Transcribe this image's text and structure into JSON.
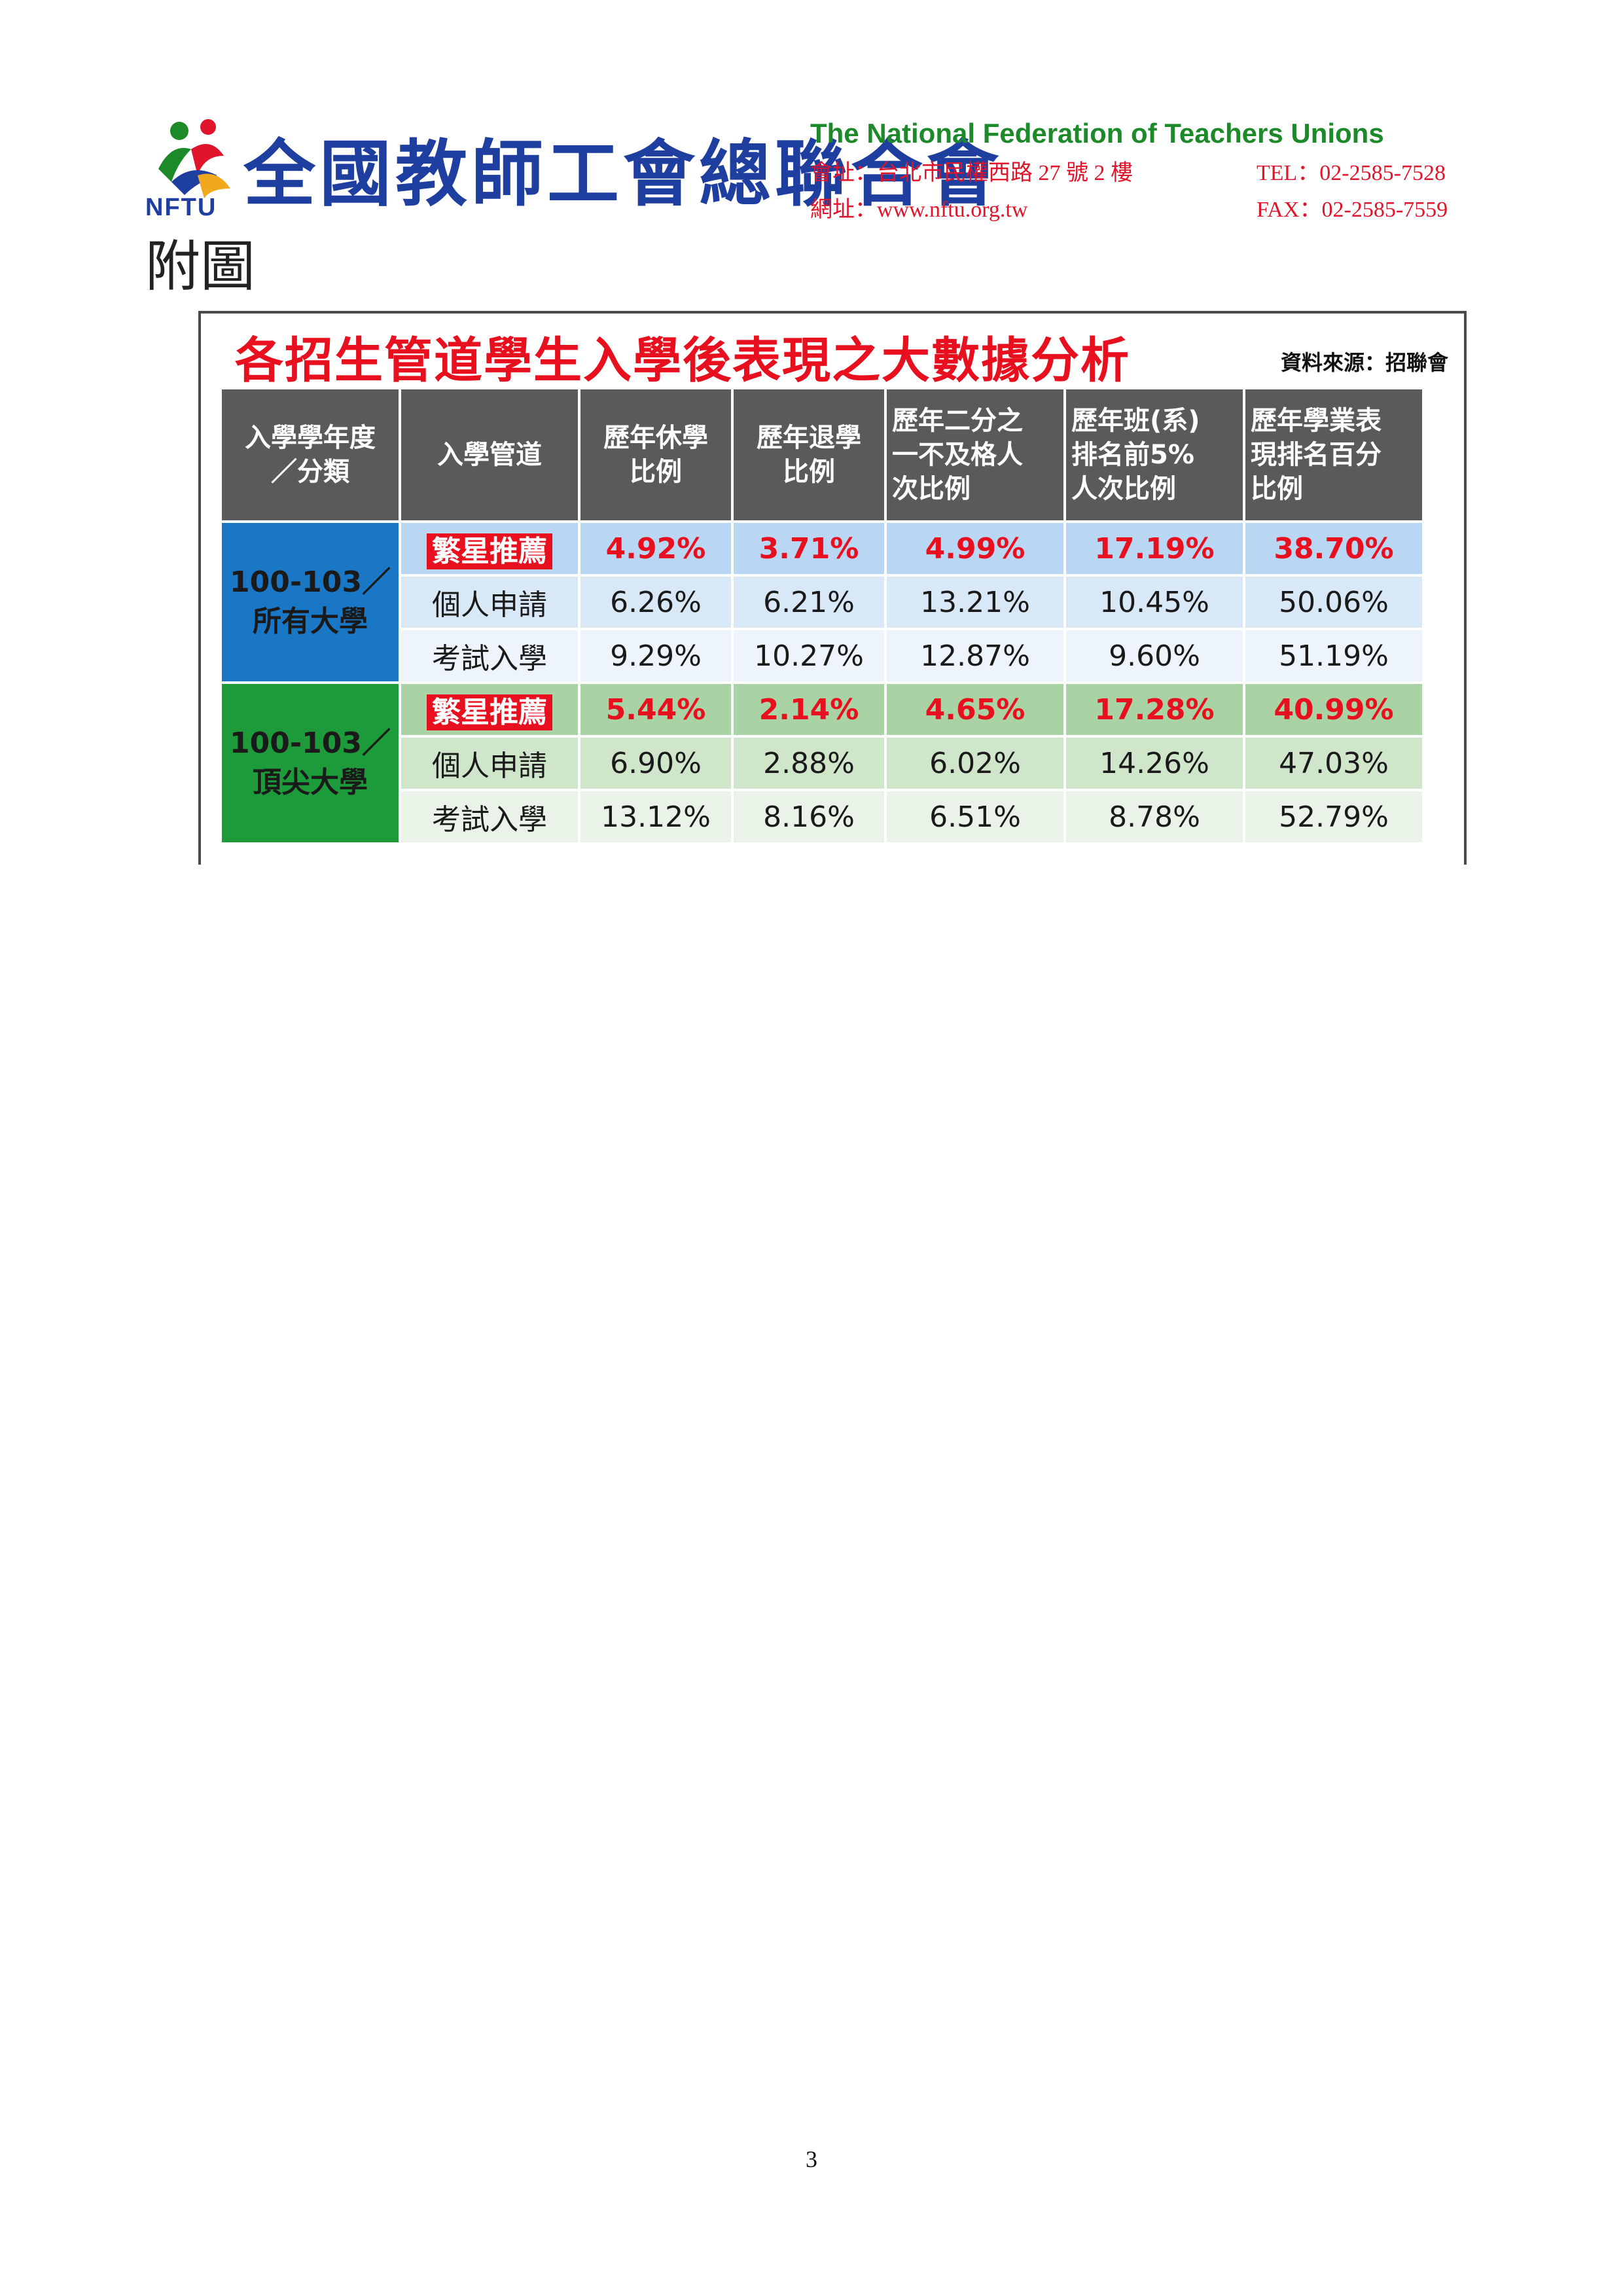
{
  "header": {
    "logo_text": "NFTU",
    "org_name_zh": "全國教師工會總聯合會",
    "org_name_en": "The National Federation of Teachers Unions",
    "address": "會址：台北市民權西路 27 號 2 樓",
    "tel": "TEL：02-2585-7528",
    "website": "網址：www.nftu.org.tw",
    "fax": "FAX：02-2585-7559"
  },
  "caption": "附圖",
  "table": {
    "title": "各招生管道學生入學後表現之大數據分析",
    "source": "資料來源：招聯會",
    "headers": [
      {
        "lines": [
          "入學學年度",
          "／分類"
        ]
      },
      {
        "lines": [
          "入學管道"
        ]
      },
      {
        "lines": [
          "歷年休學",
          "比例"
        ]
      },
      {
        "lines": [
          "歷年退學",
          "比例"
        ]
      },
      {
        "lines": [
          "歷年二分之",
          "一不及格人",
          "次比例"
        ]
      },
      {
        "lines": [
          "歷年班(系)",
          "排名前5%",
          "人次比例"
        ]
      },
      {
        "lines": [
          "歷年學業表",
          "現排名百分",
          "比例"
        ]
      }
    ],
    "groups": [
      {
        "label_lines": [
          "100-103／",
          "所有大學"
        ],
        "color": "#1a77c6",
        "rows": [
          {
            "channel": "繁星推薦",
            "highlight": true,
            "values": [
              "4.92%",
              "3.71%",
              "4.99%",
              "17.19%",
              "38.70%"
            ]
          },
          {
            "channel": "個人申請",
            "highlight": false,
            "values": [
              "6.26%",
              "6.21%",
              "13.21%",
              "10.45%",
              "50.06%"
            ]
          },
          {
            "channel": "考試入學",
            "highlight": false,
            "values": [
              "9.29%",
              "10.27%",
              "12.87%",
              "9.60%",
              "51.19%"
            ]
          }
        ]
      },
      {
        "label_lines": [
          "100-103／",
          "頂尖大學"
        ],
        "color": "#1d9a3a",
        "rows": [
          {
            "channel": "繁星推薦",
            "highlight": true,
            "values": [
              "5.44%",
              "2.14%",
              "4.65%",
              "17.28%",
              "40.99%"
            ]
          },
          {
            "channel": "個人申請",
            "highlight": false,
            "values": [
              "6.90%",
              "2.88%",
              "6.02%",
              "14.26%",
              "47.03%"
            ]
          },
          {
            "channel": "考試入學",
            "highlight": false,
            "values": [
              "13.12%",
              "8.16%",
              "6.51%",
              "8.78%",
              "52.79%"
            ]
          }
        ]
      }
    ]
  },
  "page_number": "3"
}
